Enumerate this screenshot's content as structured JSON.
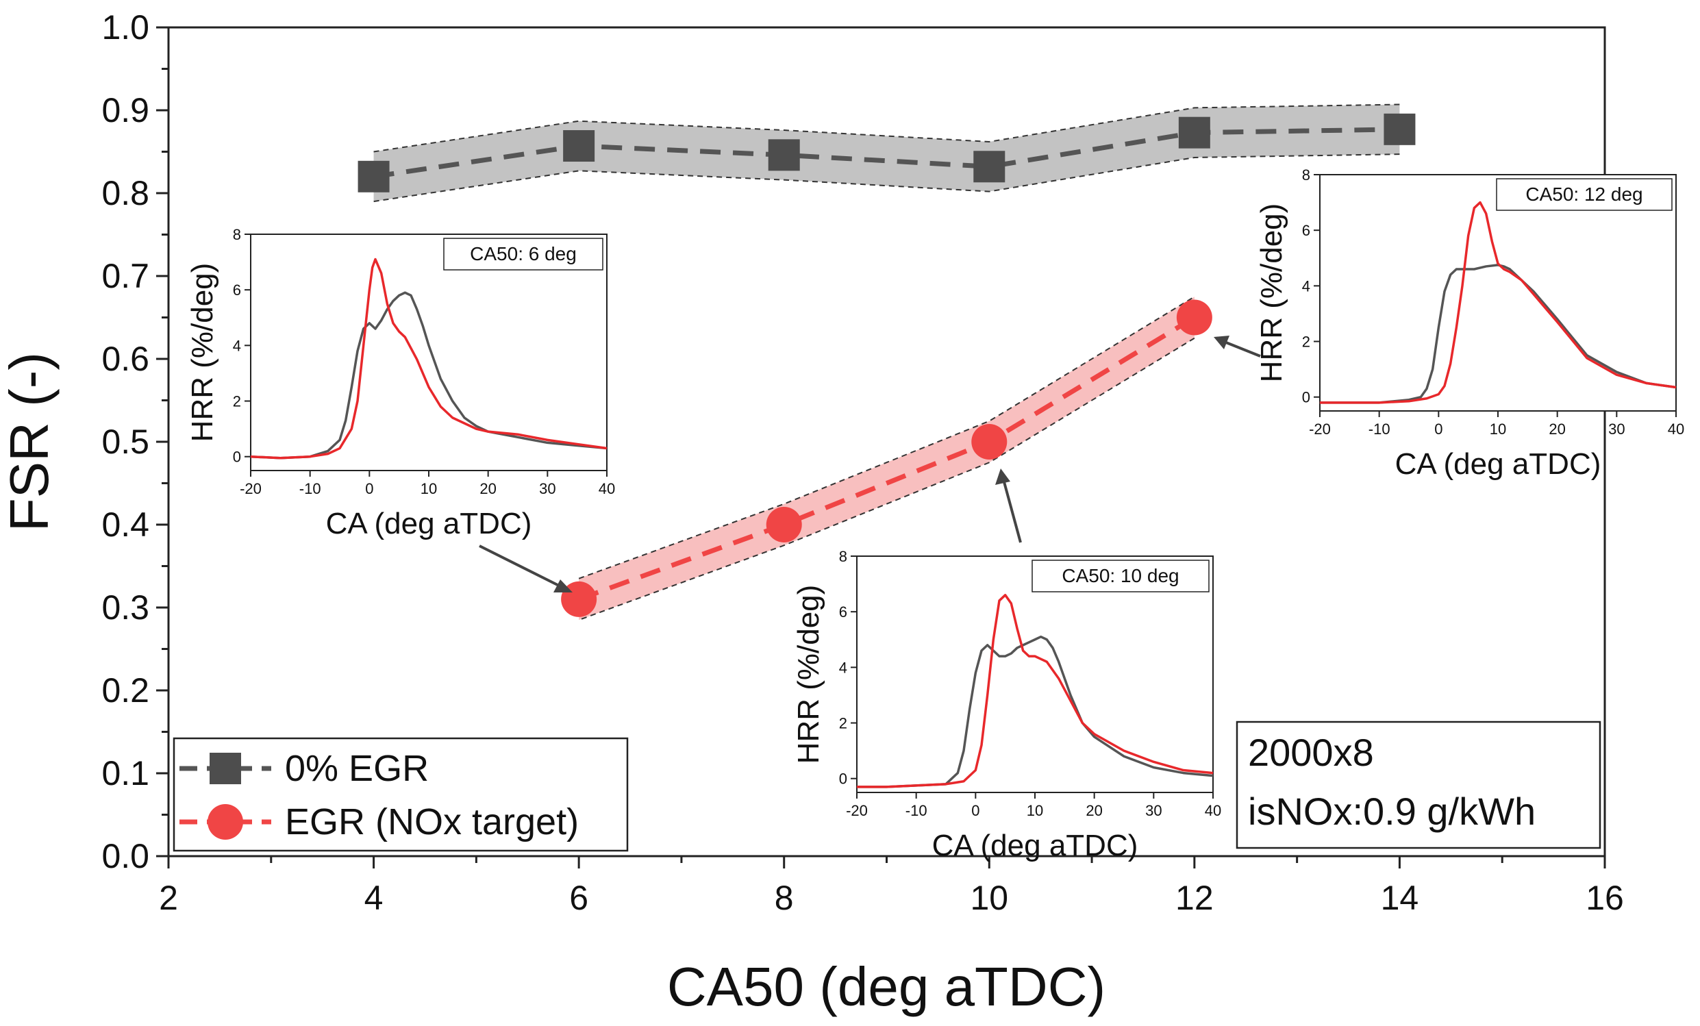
{
  "chart_data": [
    {
      "type": "line",
      "role": "main",
      "xlabel": "CA50 (deg aTDC)",
      "ylabel": "FSR (-)",
      "xlim": [
        2,
        16
      ],
      "ylim": [
        0.0,
        1.0
      ],
      "xticks": [
        2,
        4,
        6,
        8,
        10,
        12,
        14,
        16
      ],
      "xtick_labels": [
        "2",
        "4",
        "6",
        "8",
        "10",
        "12",
        "14",
        "16"
      ],
      "yticks": [
        0.0,
        0.1,
        0.2,
        0.3,
        0.4,
        0.5,
        0.6,
        0.7,
        0.8,
        0.9,
        1.0
      ],
      "ytick_labels": [
        "0.0",
        "0.1",
        "0.2",
        "0.3",
        "0.4",
        "0.5",
        "0.6",
        "0.7",
        "0.8",
        "0.9",
        "1.0"
      ],
      "grid": false,
      "legend_position": "bottom-left",
      "series": [
        {
          "name": "0% EGR",
          "marker": "square",
          "color": "#555555",
          "band_color": "#bdbdbd",
          "band_width": 0.03,
          "x": [
            4,
            6,
            8,
            10,
            12,
            14
          ],
          "y": [
            0.82,
            0.857,
            0.846,
            0.832,
            0.873,
            0.877
          ]
        },
        {
          "name": "EGR (NOx target)",
          "marker": "circle",
          "color": "#f04545",
          "band_color": "#f7b8b8",
          "band_width": 0.025,
          "x": [
            6,
            8,
            10,
            12
          ],
          "y": [
            0.31,
            0.4,
            0.5,
            0.65
          ]
        }
      ],
      "annotation_lines": [
        "2000x8",
        "isNOx:0.9 g/kWh"
      ]
    },
    {
      "type": "line",
      "role": "inset",
      "title": "CA50: 6 deg",
      "points_to": {
        "x": 6,
        "y": 0.31
      },
      "xlabel": "CA (deg aTDC)",
      "ylabel": "HRR (%/deg)",
      "xlim": [
        -20,
        40
      ],
      "ylim": [
        -0.5,
        8
      ],
      "xticks": [
        -20,
        -10,
        0,
        10,
        20,
        30,
        40
      ],
      "xtick_labels": [
        "-20",
        "-10",
        "0",
        "10",
        "20",
        "30",
        "40"
      ],
      "yticks": [
        0,
        2,
        4,
        6,
        8
      ],
      "ytick_labels": [
        "0",
        "2",
        "4",
        "6",
        "8"
      ],
      "series": [
        {
          "name": "0% EGR",
          "color": "#555555",
          "x": [
            -20,
            -15,
            -10,
            -7,
            -5,
            -4,
            -3,
            -2,
            -1,
            0,
            1,
            2,
            3,
            4,
            5,
            6,
            7,
            8,
            9,
            10,
            12,
            14,
            16,
            18,
            20,
            25,
            30,
            35,
            40
          ],
          "y": [
            0.0,
            -0.05,
            0.0,
            0.2,
            0.6,
            1.3,
            2.5,
            3.8,
            4.6,
            4.8,
            4.6,
            4.9,
            5.3,
            5.6,
            5.8,
            5.9,
            5.8,
            5.3,
            4.7,
            4.0,
            2.8,
            2.0,
            1.4,
            1.1,
            0.9,
            0.7,
            0.5,
            0.4,
            0.3
          ]
        },
        {
          "name": "EGR (NOx target)",
          "color": "#e8282b",
          "x": [
            -20,
            -15,
            -10,
            -7,
            -5,
            -3,
            -2,
            -1,
            0,
            0.5,
            1,
            2,
            3,
            4,
            5,
            6,
            8,
            10,
            12,
            14,
            16,
            18,
            20,
            25,
            30,
            35,
            40
          ],
          "y": [
            0.0,
            -0.05,
            0.0,
            0.1,
            0.3,
            1.0,
            2.0,
            4.0,
            6.0,
            6.8,
            7.1,
            6.6,
            5.5,
            4.8,
            4.5,
            4.3,
            3.5,
            2.5,
            1.8,
            1.4,
            1.2,
            1.0,
            0.9,
            0.8,
            0.6,
            0.45,
            0.3
          ]
        }
      ]
    },
    {
      "type": "line",
      "role": "inset",
      "title": "CA50: 10 deg",
      "points_to": {
        "x": 10,
        "y": 0.5
      },
      "xlabel": "CA (deg aTDC)",
      "ylabel": "HRR (%/deg)",
      "xlim": [
        -20,
        40
      ],
      "ylim": [
        -0.5,
        8
      ],
      "xticks": [
        -20,
        -10,
        0,
        10,
        20,
        30,
        40
      ],
      "xtick_labels": [
        "-20",
        "-10",
        "0",
        "10",
        "20",
        "30",
        "40"
      ],
      "yticks": [
        0,
        2,
        4,
        6,
        8
      ],
      "ytick_labels": [
        "0",
        "2",
        "4",
        "6",
        "8"
      ],
      "series": [
        {
          "name": "0% EGR",
          "color": "#555555",
          "x": [
            -20,
            -15,
            -10,
            -5,
            -3,
            -2,
            -1,
            0,
            1,
            2,
            3,
            4,
            5,
            6,
            7,
            8,
            9,
            10,
            11,
            12,
            13,
            14,
            16,
            18,
            20,
            25,
            30,
            35,
            40
          ],
          "y": [
            -0.3,
            -0.3,
            -0.25,
            -0.2,
            0.2,
            1.0,
            2.5,
            3.8,
            4.6,
            4.8,
            4.6,
            4.4,
            4.4,
            4.5,
            4.7,
            4.8,
            4.9,
            5.0,
            5.1,
            5.0,
            4.7,
            4.2,
            3.0,
            2.0,
            1.5,
            0.8,
            0.4,
            0.2,
            0.1
          ]
        },
        {
          "name": "EGR (NOx target)",
          "color": "#e8282b",
          "x": [
            -20,
            -15,
            -10,
            -5,
            -2,
            0,
            1,
            2,
            3,
            4,
            5,
            6,
            7,
            8,
            9,
            10,
            11,
            12,
            14,
            16,
            18,
            20,
            25,
            30,
            35,
            40
          ],
          "y": [
            -0.3,
            -0.3,
            -0.25,
            -0.2,
            -0.1,
            0.3,
            1.2,
            3.0,
            5.0,
            6.4,
            6.6,
            6.3,
            5.4,
            4.6,
            4.4,
            4.4,
            4.3,
            4.2,
            3.6,
            2.8,
            2.0,
            1.6,
            1.0,
            0.6,
            0.3,
            0.2
          ]
        }
      ]
    },
    {
      "type": "line",
      "role": "inset",
      "title": "CA50: 12 deg",
      "points_to": {
        "x": 12,
        "y": 0.65
      },
      "xlabel": "CA (deg aTDC)",
      "ylabel": "HRR (%/deg)",
      "xlim": [
        -20,
        40
      ],
      "ylim": [
        -0.5,
        8
      ],
      "xticks": [
        -20,
        -10,
        0,
        10,
        20,
        30,
        40
      ],
      "xtick_labels": [
        "-20",
        "-10",
        "0",
        "10",
        "20",
        "30",
        "40"
      ],
      "yticks": [
        0,
        2,
        4,
        6,
        8
      ],
      "ytick_labels": [
        "0",
        "2",
        "4",
        "6",
        "8"
      ],
      "series": [
        {
          "name": "0% EGR",
          "color": "#555555",
          "x": [
            -20,
            -15,
            -10,
            -5,
            -3,
            -2,
            -1,
            0,
            1,
            2,
            3,
            4,
            6,
            8,
            10,
            11,
            12,
            14,
            16,
            18,
            20,
            25,
            30,
            35,
            40
          ],
          "y": [
            -0.2,
            -0.2,
            -0.2,
            -0.1,
            0.0,
            0.3,
            1.0,
            2.5,
            3.8,
            4.4,
            4.6,
            4.6,
            4.6,
            4.7,
            4.75,
            4.7,
            4.6,
            4.2,
            3.8,
            3.3,
            2.8,
            1.5,
            0.9,
            0.5,
            0.35
          ]
        },
        {
          "name": "EGR (NOx target)",
          "color": "#e8282b",
          "x": [
            -20,
            -15,
            -10,
            -5,
            -2,
            0,
            1,
            2,
            3,
            4,
            5,
            6,
            7,
            8,
            9,
            10,
            11,
            12,
            14,
            16,
            18,
            20,
            25,
            30,
            35,
            40
          ],
          "y": [
            -0.2,
            -0.2,
            -0.2,
            -0.15,
            -0.05,
            0.1,
            0.4,
            1.2,
            2.5,
            4.0,
            5.8,
            6.8,
            7.0,
            6.6,
            5.6,
            4.8,
            4.6,
            4.5,
            4.2,
            3.7,
            3.2,
            2.7,
            1.4,
            0.8,
            0.5,
            0.35
          ]
        }
      ]
    }
  ]
}
